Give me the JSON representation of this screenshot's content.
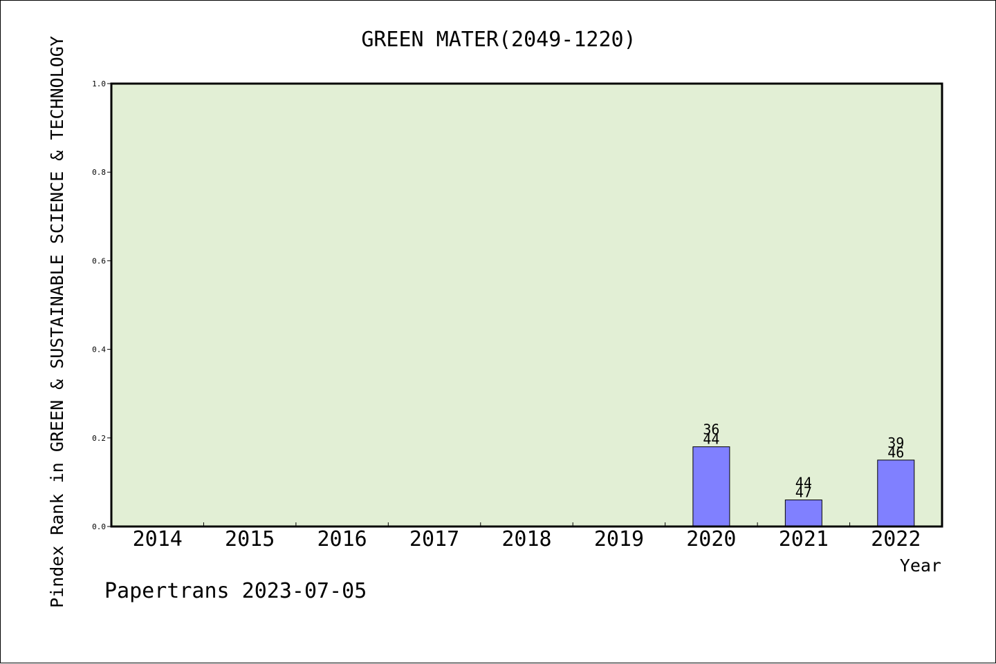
{
  "chart_data": {
    "type": "bar",
    "title": "GREEN MATER(2049-1220)",
    "xlabel": "Year",
    "ylabel": "Pindex Rank in GREEN & SUSTAINABLE SCIENCE & TECHNOLOGY",
    "categories": [
      "2014",
      "2015",
      "2016",
      "2017",
      "2018",
      "2019",
      "2020",
      "2021",
      "2022"
    ],
    "values": [
      null,
      null,
      null,
      null,
      null,
      null,
      0.18,
      0.06,
      0.15
    ],
    "bar_labels": [
      null,
      null,
      null,
      null,
      null,
      null,
      {
        "top": "36",
        "bottom": "44"
      },
      {
        "top": "44",
        "bottom": "47"
      },
      {
        "top": "39",
        "bottom": "46"
      }
    ],
    "ylim": [
      0,
      1.0
    ],
    "yticks": [
      "0.0",
      "0.2",
      "0.4",
      "0.6",
      "0.8",
      "1.0"
    ],
    "grid": false,
    "colors": {
      "plot_background": "#e2efd5",
      "bar_fill": "#8080ff",
      "bar_stroke": "#000000",
      "axis": "#000000"
    }
  },
  "footer": {
    "credit": "Papertrans 2023-07-05"
  }
}
